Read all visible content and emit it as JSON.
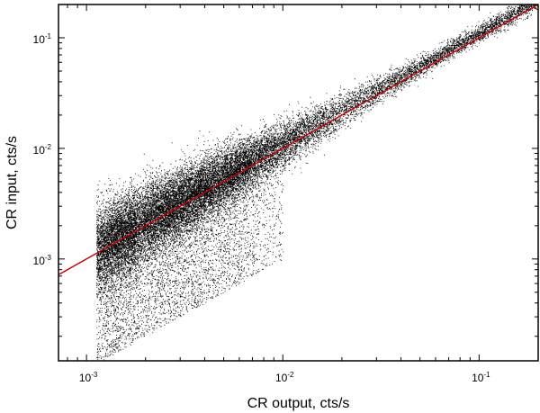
{
  "chart_data": {
    "type": "scatter",
    "title": "",
    "xlabel": "CR output, cts/s",
    "ylabel": "CR input, cts/s",
    "xscale": "log",
    "yscale": "log",
    "xlim": [
      0.00072,
      0.2
    ],
    "ylim": [
      0.00012,
      0.2
    ],
    "grid": false,
    "legend": "none",
    "x_ticks": [
      {
        "value": 0.001,
        "base": "10",
        "exp": "-3"
      },
      {
        "value": 0.01,
        "base": "10",
        "exp": "-2"
      },
      {
        "value": 0.1,
        "base": "10",
        "exp": "-1"
      }
    ],
    "y_ticks": [
      {
        "value": 0.001,
        "base": "10",
        "exp": "-3"
      },
      {
        "value": 0.01,
        "base": "10",
        "exp": "-2"
      },
      {
        "value": 0.1,
        "base": "10",
        "exp": "-1"
      }
    ],
    "series": [
      {
        "kind": "points",
        "color": "#000000",
        "description_stats": {
          "approx_count": 45000,
          "ridge": [
            [
              0.0015,
              0.0017
            ],
            [
              0.003,
              0.0032
            ],
            [
              0.006,
              0.0062
            ],
            [
              0.01,
              0.0105
            ],
            [
              0.03,
              0.03
            ],
            [
              0.07,
              0.075
            ]
          ],
          "low_x_scatter_below_ridge": true
        }
      },
      {
        "kind": "fit-line",
        "color": "#cc0000",
        "x": [
          0.00072,
          0.2
        ],
        "y": [
          0.00072,
          0.2
        ]
      }
    ]
  }
}
